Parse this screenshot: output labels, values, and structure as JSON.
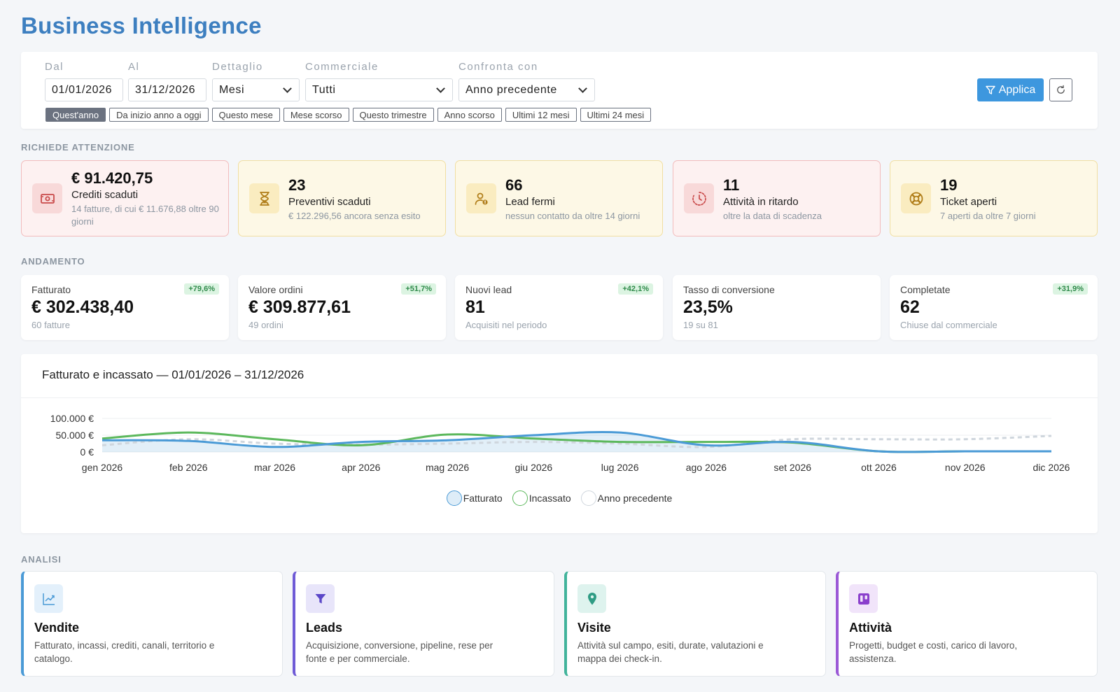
{
  "page": {
    "title": "Business Intelligence"
  },
  "filters": {
    "from_label": "Dal",
    "from_value": "01/01/2026",
    "to_label": "Al",
    "to_value": "31/12/2026",
    "detail_label": "Dettaglio",
    "detail_value": "Mesi",
    "sales_label": "Commerciale",
    "sales_value": "Tutti",
    "compare_label": "Confronta con",
    "compare_value": "Anno precedente",
    "apply_label": "Applica",
    "presets": [
      "Quest'anno",
      "Da inizio anno a oggi",
      "Questo mese",
      "Mese scorso",
      "Questo trimestre",
      "Anno scorso",
      "Ultimi 12 mesi",
      "Ultimi 24 mesi"
    ],
    "active_preset": "Quest'anno"
  },
  "attention": {
    "label": "RICHIEDE ATTENZIONE",
    "cards": [
      {
        "value": "€ 91.420,75",
        "title": "Crediti scaduti",
        "desc": "14 fatture, di cui € 11.676,88 oltre 90 giorni",
        "tone": "red",
        "icon": "cash-icon"
      },
      {
        "value": "23",
        "title": "Preventivi scaduti",
        "desc": "€ 122.296,56 ancora senza esito",
        "tone": "yellow",
        "icon": "hourglass-icon"
      },
      {
        "value": "66",
        "title": "Lead fermi",
        "desc": "nessun contatto da oltre 14 giorni",
        "tone": "yellow",
        "icon": "user-alert-icon"
      },
      {
        "value": "11",
        "title": "Attività in ritardo",
        "desc": "oltre la data di scadenza",
        "tone": "red",
        "icon": "clock-icon"
      },
      {
        "value": "19",
        "title": "Ticket aperti",
        "desc": "7 aperti da oltre 7 giorni",
        "tone": "yellow",
        "icon": "lifebuoy-icon"
      }
    ]
  },
  "trend": {
    "label": "ANDAMENTO",
    "kpis": [
      {
        "label": "Fatturato",
        "value": "€ 302.438,40",
        "sub": "60 fatture",
        "badge": "+79,6%"
      },
      {
        "label": "Valore ordini",
        "value": "€ 309.877,61",
        "sub": "49 ordini",
        "badge": "+51,7%"
      },
      {
        "label": "Nuovi lead",
        "value": "81",
        "sub": "Acquisiti nel periodo",
        "badge": "+42,1%"
      },
      {
        "label": "Tasso di conversione",
        "value": "23,5%",
        "sub": "19 su 81",
        "badge": ""
      },
      {
        "label": "Completate",
        "value": "62",
        "sub": "Chiuse dal commerciale",
        "badge": "+31,9%"
      }
    ]
  },
  "chart": {
    "title": "Fatturato e incassato — 01/01/2026 – 31/12/2026"
  },
  "chart_data": {
    "type": "line",
    "categories": [
      "gen 2026",
      "feb 2026",
      "mar 2026",
      "apr 2026",
      "mag 2026",
      "giu 2026",
      "lug 2026",
      "ago 2026",
      "set 2026",
      "ott 2026",
      "nov 2026",
      "dic 2026"
    ],
    "series": [
      {
        "name": "Fatturato",
        "color": "#4a9ad6",
        "values": [
          35000,
          33000,
          15000,
          30000,
          35000,
          50000,
          58000,
          20000,
          30000,
          2000,
          2000,
          2000
        ]
      },
      {
        "name": "Incassato",
        "color": "#5cb85c",
        "values": [
          40000,
          58000,
          38000,
          20000,
          52000,
          40000,
          30000,
          30000,
          28000,
          2000,
          2000,
          2000
        ]
      },
      {
        "name": "Anno precedente",
        "color": "#cfd6dd",
        "values": [
          20000,
          38000,
          25000,
          22000,
          25000,
          30000,
          25000,
          15000,
          38000,
          38000,
          38000,
          48000
        ]
      }
    ],
    "yticks": [
      "100.000 €",
      "50.000 €",
      "0 €"
    ],
    "ylim": [
      0,
      100000
    ],
    "legend": "bottom",
    "grid": true
  },
  "analysis": {
    "label": "ANALISI",
    "cards": [
      {
        "title": "Vendite",
        "desc": "Fatturato, incassi, crediti, canali, territorio e catalogo.",
        "accent": "#4a9ad6",
        "icon": "chart-line-icon"
      },
      {
        "title": "Leads",
        "desc": "Acquisizione, conversione, pipeline, rese per fonte e per commerciale.",
        "accent": "#6f5bd6",
        "icon": "funnel-icon"
      },
      {
        "title": "Visite",
        "desc": "Attività sul campo, esiti, durate, valutazioni e mappa dei check-in.",
        "accent": "#41b39b",
        "icon": "map-pin-icon"
      },
      {
        "title": "Attività",
        "desc": "Progetti, budget e costi, carico di lavoro, assistenza.",
        "accent": "#9b59d6",
        "icon": "kanban-icon"
      }
    ]
  }
}
